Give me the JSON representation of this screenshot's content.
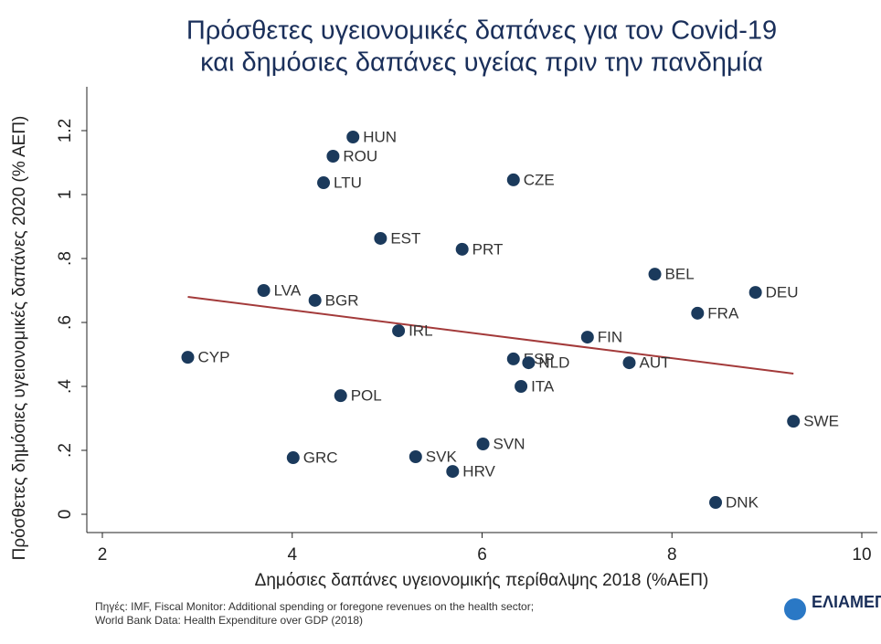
{
  "chart_data": {
    "type": "scatter",
    "title": [
      "Πρόσθετες υγειονομικές δαπάνες για τον Covid-19",
      "και δημόσιες δαπάνες υγείας πριν την πανδημία"
    ],
    "x_label": "Δημόσιες δαπάνες υγειονομικής περίθαλψης 2018 (%ΑΕΠ)",
    "y_label": "Πρόσθετες δημόσιες υγειονομικές δαπάνες 2020 (% ΑΕΠ)",
    "source": [
      "Πηγές: IMF, Fiscal Monitor: Additional spending or foregone revenues on the health sector;",
      "World Bank Data: Health Expenditure over GDP (2018)"
    ],
    "logo": "ΕΛΙΑΜΕΠ",
    "xlim": [
      2,
      10
    ],
    "xticks": [
      2,
      4,
      6,
      8,
      10
    ],
    "ylim": [
      0,
      1.2
    ],
    "yticks": [
      0,
      {
        "value": 0.2,
        "label": ".2"
      },
      {
        "value": 0.4,
        "label": ".4"
      },
      {
        "value": 0.6,
        "label": ".6"
      },
      {
        "value": 0.8,
        "label": ".8"
      },
      1,
      1.2
    ],
    "color": "#1b3a5c",
    "labels": [
      "HUN",
      "ROU",
      "LTU",
      "CZE",
      "EST",
      "PRT",
      "BEL",
      "DEU",
      "LVA",
      "BGR",
      "FRA",
      "IRL",
      "FIN",
      "CYP",
      "ESP",
      "NLD",
      "AUT",
      "ITA",
      "POL",
      "SWE",
      "SVN",
      "GRC",
      "SVK",
      "HRV",
      "DNK"
    ],
    "x": [
      4.64,
      4.43,
      4.33,
      6.33,
      4.93,
      5.79,
      7.82,
      8.88,
      3.7,
      4.24,
      8.27,
      5.12,
      7.11,
      2.9,
      6.33,
      6.49,
      7.55,
      6.41,
      4.51,
      9.28,
      6.01,
      4.01,
      5.3,
      5.69,
      8.46
    ],
    "y": [
      1.18,
      1.12,
      1.037,
      1.046,
      0.863,
      0.829,
      0.751,
      0.694,
      0.7,
      0.669,
      0.629,
      0.574,
      0.554,
      0.491,
      0.486,
      0.474,
      0.474,
      0.4,
      0.371,
      0.291,
      0.22,
      0.177,
      0.18,
      0.134,
      0.037
    ],
    "fit_line": {
      "color": "#a33a3a",
      "x": [
        2.9,
        9.28
      ],
      "y": [
        0.68,
        0.44
      ]
    }
  }
}
